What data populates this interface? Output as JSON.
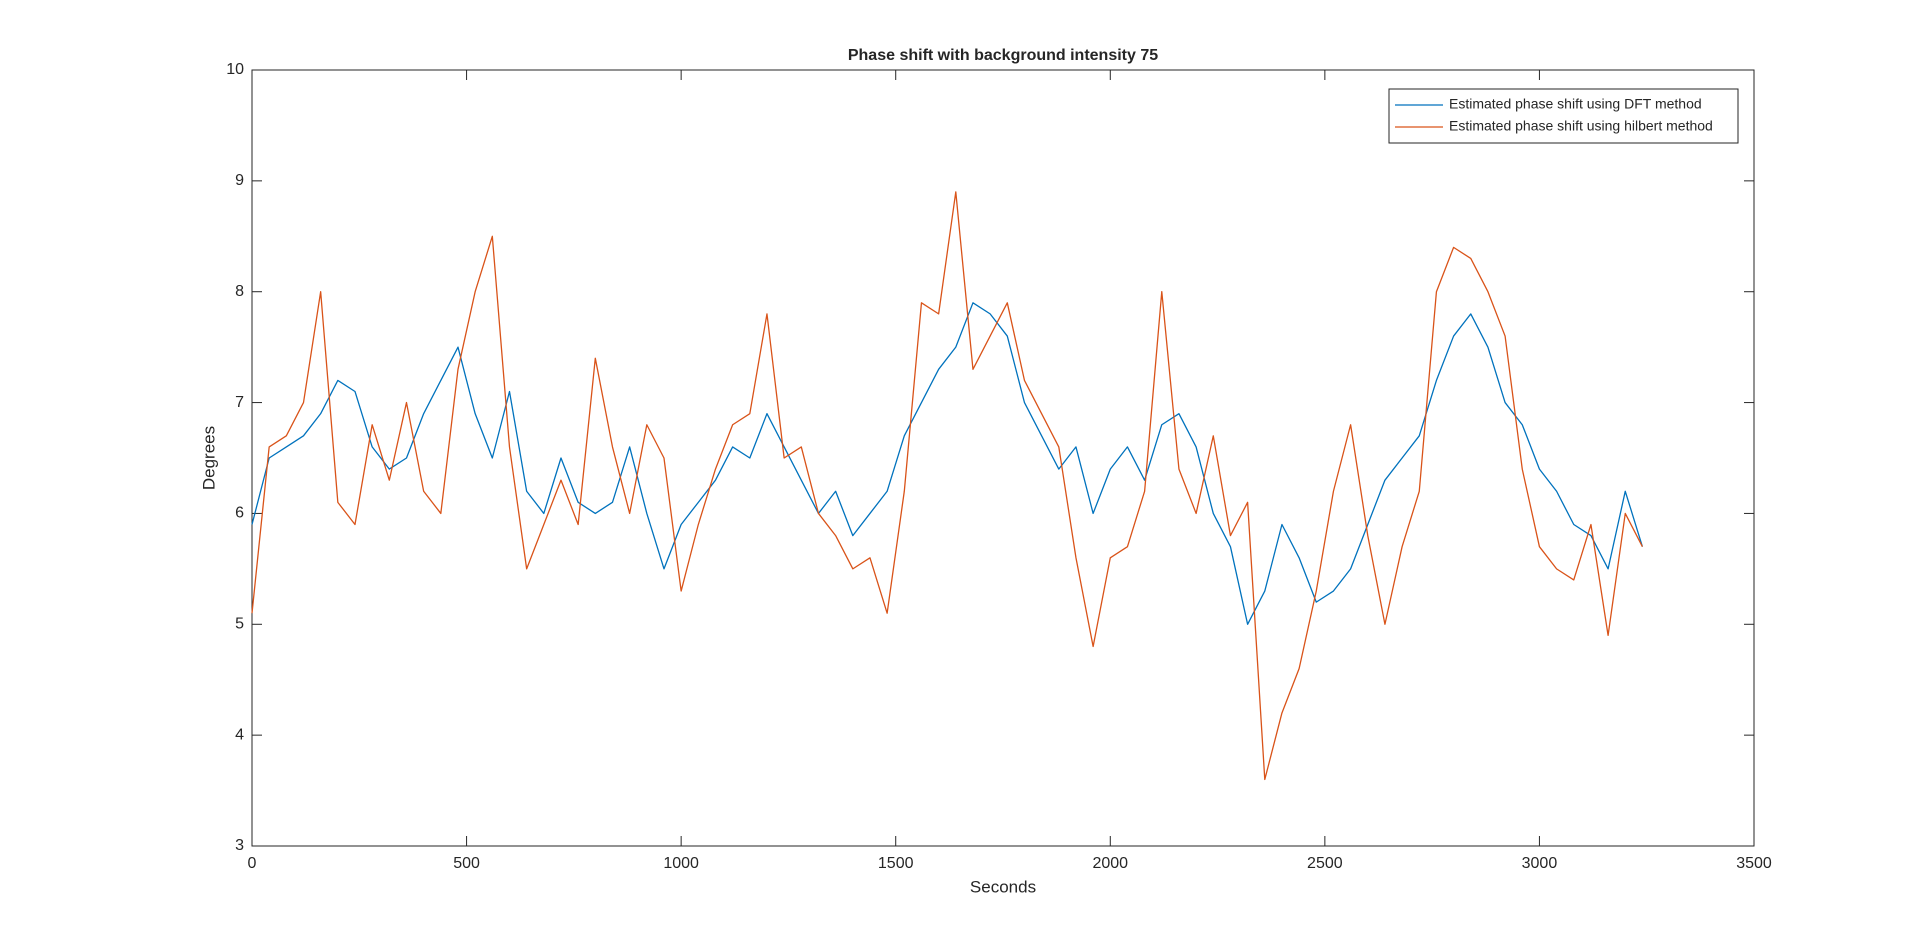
{
  "chart_data": {
    "type": "line",
    "title": "Phase shift with background intensity 75",
    "x_label": "Seconds",
    "y_label": "Degrees",
    "x": [
      0,
      40,
      80,
      120,
      160,
      200,
      240,
      280,
      320,
      360,
      400,
      440,
      480,
      520,
      560,
      600,
      640,
      680,
      720,
      760,
      800,
      840,
      880,
      920,
      960,
      1000,
      1040,
      1080,
      1120,
      1160,
      1200,
      1240,
      1280,
      1320,
      1360,
      1400,
      1440,
      1480,
      1520,
      1560,
      1600,
      1640,
      1680,
      1720,
      1760,
      1800,
      1840,
      1880,
      1920,
      1960,
      2000,
      2040,
      2080,
      2120,
      2160,
      2200,
      2240,
      2280,
      2320,
      2360,
      2400,
      2440,
      2480,
      2520,
      2560,
      2600,
      2640,
      2680,
      2720,
      2760,
      2800,
      2840,
      2880,
      2920,
      2960,
      3000,
      3040,
      3080,
      3120,
      3160,
      3200,
      3240
    ],
    "series": [
      {
        "name": "Estimated phase shift using DFT method",
        "color": "#0072bd",
        "values": [
          5.9,
          6.5,
          6.6,
          6.7,
          6.9,
          7.2,
          7.1,
          6.6,
          6.4,
          6.5,
          6.9,
          7.2,
          7.5,
          6.9,
          6.5,
          7.1,
          6.2,
          6.0,
          6.5,
          6.1,
          6.0,
          6.1,
          6.6,
          6.0,
          5.5,
          5.9,
          6.1,
          6.3,
          6.6,
          6.5,
          6.9,
          6.6,
          6.3,
          6.0,
          6.2,
          5.8,
          6.0,
          6.2,
          6.7,
          7.0,
          7.3,
          7.5,
          7.9,
          7.8,
          7.6,
          7.0,
          6.7,
          6.4,
          6.6,
          6.0,
          6.4,
          6.6,
          6.3,
          6.8,
          6.9,
          6.6,
          6.0,
          5.7,
          5.0,
          5.3,
          5.9,
          5.6,
          5.2,
          5.3,
          5.5,
          5.9,
          6.3,
          6.5,
          6.7,
          7.2,
          7.6,
          7.8,
          7.5,
          7.0,
          6.8,
          6.4,
          6.2,
          5.9,
          5.8,
          5.5,
          6.2,
          5.7
        ]
      },
      {
        "name": "Estimated phase shift using hilbert method",
        "color": "#d95319",
        "values": [
          5.1,
          6.6,
          6.7,
          7.0,
          8.0,
          6.1,
          5.9,
          6.8,
          6.3,
          7.0,
          6.2,
          6.0,
          7.3,
          8.0,
          8.5,
          6.6,
          5.5,
          5.9,
          6.3,
          5.9,
          7.4,
          6.6,
          6.0,
          6.8,
          6.5,
          5.3,
          5.9,
          6.4,
          6.8,
          6.9,
          7.8,
          6.5,
          6.6,
          6.0,
          5.8,
          5.5,
          5.6,
          5.1,
          6.2,
          7.9,
          7.8,
          8.9,
          7.3,
          7.6,
          7.9,
          7.2,
          6.9,
          6.6,
          5.6,
          4.8,
          5.6,
          5.7,
          6.2,
          8.0,
          6.4,
          6.0,
          6.7,
          5.8,
          6.1,
          3.6,
          4.2,
          4.6,
          5.3,
          6.2,
          6.8,
          5.8,
          5.0,
          5.7,
          6.2,
          8.0,
          8.4,
          8.3,
          8.0,
          7.6,
          6.4,
          5.7,
          5.5,
          5.4,
          5.9,
          4.9,
          6.0,
          5.7
        ]
      }
    ],
    "xlim": [
      0,
      3500
    ],
    "xticks": [
      0,
      500,
      1000,
      1500,
      2000,
      2500,
      3000,
      3500
    ],
    "ylim": [
      3,
      10
    ],
    "yticks": [
      3,
      4,
      5,
      6,
      7,
      8,
      9,
      10
    ],
    "grid": false,
    "legend": "top-right"
  }
}
